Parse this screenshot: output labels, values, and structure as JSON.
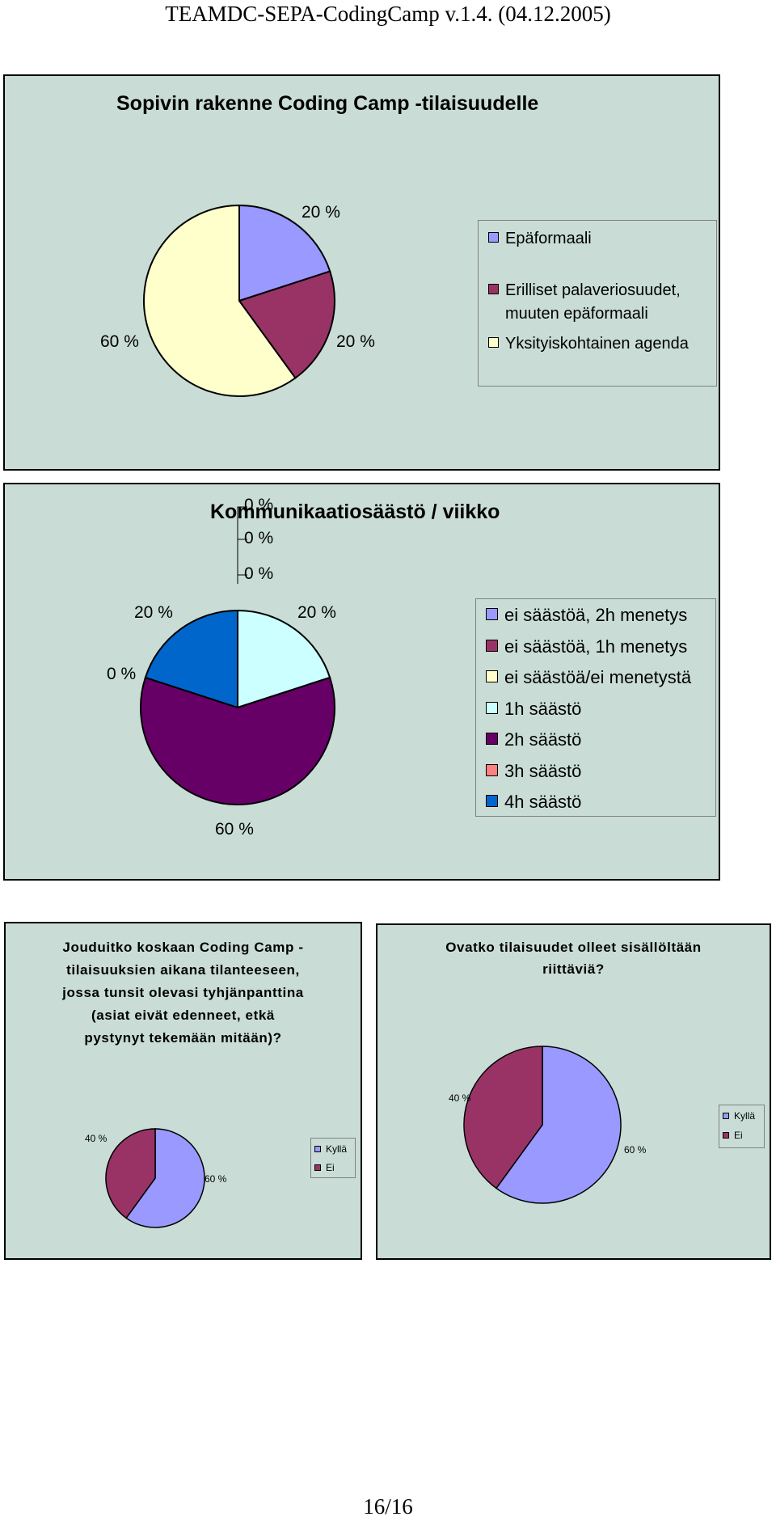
{
  "page": {
    "header": "TEAMDC-SEPA-CodingCamp v.1.4. (04.12.2005)",
    "footer": "16/16"
  },
  "chart_data": [
    {
      "type": "pie",
      "title": "Sopivin rakenne Coding Camp -tilaisuudelle",
      "categories": [
        "Epäformaali",
        "Erilliset palaveriosuudet, muuten epäformaali",
        "Yksityiskohtainen agenda"
      ],
      "values": [
        20,
        20,
        60
      ],
      "data_labels": [
        "20 %",
        "20 %",
        "60 %"
      ],
      "colors": [
        "#9999ff",
        "#993366",
        "#ffffcc"
      ],
      "legend": "right"
    },
    {
      "type": "pie",
      "title": "Kommunikaatiosäästö / viikko",
      "categories": [
        "ei säästöä, 2h menetys",
        "ei säästöä, 1h menetys",
        "ei säästöä/ei menetystä",
        "1h säästö",
        "2h säästö",
        "3h säästö",
        "4h säästö"
      ],
      "values": [
        0,
        0,
        0,
        20,
        60,
        0,
        20
      ],
      "data_labels": [
        "0 %",
        "0 %",
        "0 %",
        "20 %",
        "60 %",
        "0 %",
        "20 %"
      ],
      "colors": [
        "#9999ff",
        "#993366",
        "#ffffcc",
        "#ccffff",
        "#660066",
        "#ff8080",
        "#0066cc"
      ],
      "legend": "right"
    },
    {
      "type": "pie",
      "title": "Jouduitko koskaan Coding Camp -tilaisuuksien aikana tilanteeseen, jossa tunsit olevasi tyhjänpanttina (asiat eivät edenneet, etkä pystynyt tekemään mitään)?",
      "title_lines": [
        "Jouduitko koskaan Coding Camp -",
        "tilaisuuksien aikana tilanteeseen,",
        "jossa tunsit olevasi tyhjänpanttina",
        "(asiat eivät edenneet, etkä",
        "pystynyt tekemään mitään)?"
      ],
      "categories": [
        "Kyllä",
        "Ei"
      ],
      "values": [
        60,
        40
      ],
      "data_labels": [
        "60 %",
        "40 %"
      ],
      "colors": [
        "#9999ff",
        "#993366"
      ],
      "legend": "right"
    },
    {
      "type": "pie",
      "title": "Ovatko tilaisuudet olleet sisällöltään riittäviä?",
      "title_lines": [
        "Ovatko tilaisuudet olleet sisällöltään",
        "riittäviä?"
      ],
      "categories": [
        "Kyllä",
        "Ei"
      ],
      "values": [
        60,
        40
      ],
      "data_labels": [
        "60 %",
        "40 %"
      ],
      "colors": [
        "#9999ff",
        "#993366"
      ],
      "legend": "right"
    }
  ]
}
